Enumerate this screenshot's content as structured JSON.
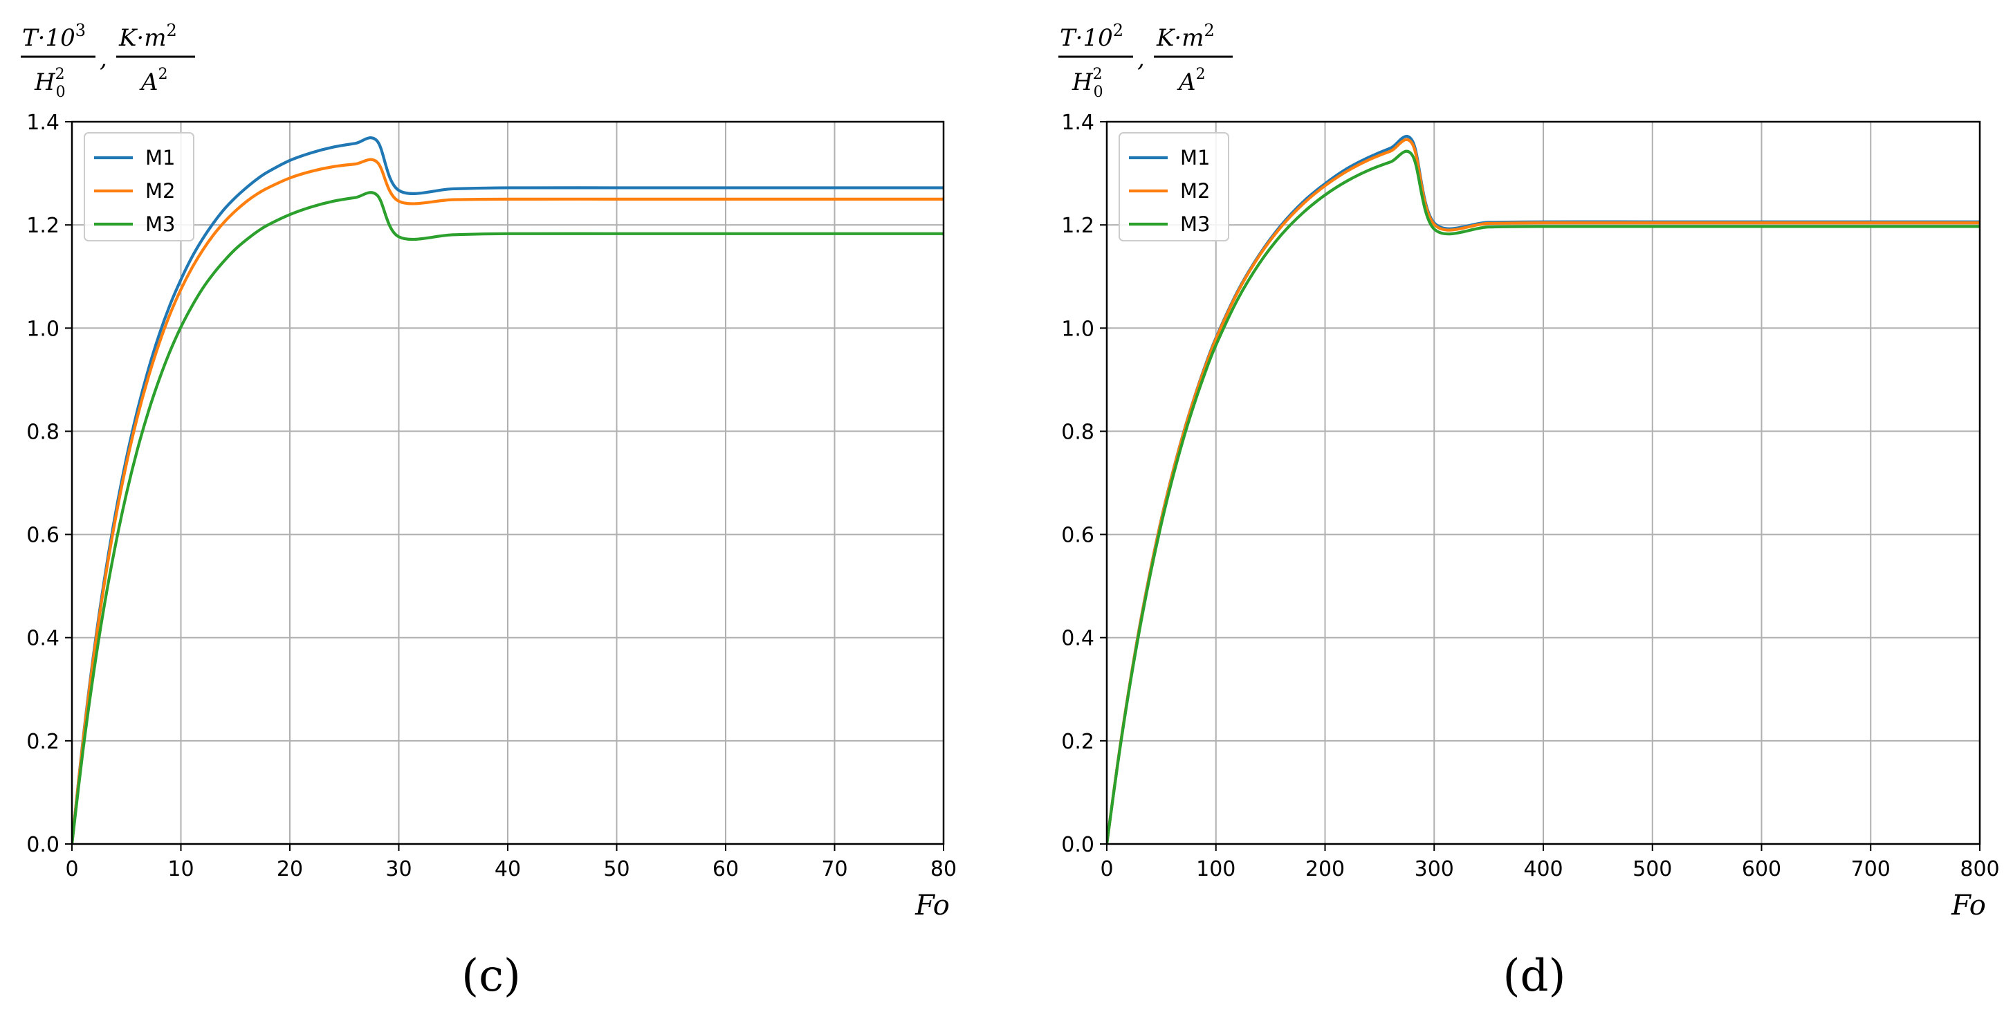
{
  "chart_data": [
    {
      "type": "line",
      "panel_label": "(c)",
      "ylabel": {
        "part1_num_base": "T·10",
        "part1_num_exp": "3",
        "part1_den_base": "H",
        "part1_den_sub": "0",
        "part1_den_sup": "2",
        "separator": ",",
        "part2_num_base": "K·m",
        "part2_num_exp": "2",
        "part2_den_base": "A",
        "part2_den_exp": "2"
      },
      "xlabel": "Fo",
      "xlim": [
        0,
        80
      ],
      "ylim": [
        0,
        1.4
      ],
      "xticks": [
        0,
        10,
        20,
        30,
        40,
        50,
        60,
        70,
        80
      ],
      "xtick_labels": [
        "0",
        "10",
        "20",
        "30",
        "40",
        "50",
        "60",
        "70",
        "80"
      ],
      "yticks": [
        0,
        0.2,
        0.4,
        0.6,
        0.8,
        1.0,
        1.2,
        1.4
      ],
      "ytick_labels": [
        "0.0",
        "0.2",
        "0.4",
        "0.6",
        "0.8",
        "1.0",
        "1.2",
        "1.4"
      ],
      "grid": true,
      "legend_position": "top-left",
      "series": [
        {
          "name": "M1",
          "color": "#1f77b4",
          "x": [
            0,
            1,
            2,
            3,
            4,
            5,
            6,
            7,
            8,
            9,
            10,
            11,
            12,
            13,
            14,
            15,
            16,
            17,
            18,
            20,
            22,
            24,
            26,
            28,
            30,
            35,
            40,
            50,
            60,
            70,
            80
          ],
          "y": [
            0,
            0.199,
            0.37,
            0.516,
            0.641,
            0.748,
            0.84,
            0.919,
            0.987,
            1.045,
            1.094,
            1.137,
            1.173,
            1.204,
            1.231,
            1.253,
            1.272,
            1.289,
            1.303,
            1.325,
            1.34,
            1.351,
            1.358,
            1.363,
            1.267,
            1.27,
            1.272,
            1.272,
            1.272,
            1.272,
            1.272
          ]
        },
        {
          "name": "M2",
          "color": "#ff7f0e",
          "x": [
            0,
            1,
            2,
            3,
            4,
            5,
            6,
            7,
            8,
            9,
            10,
            11,
            12,
            13,
            14,
            15,
            16,
            17,
            18,
            20,
            22,
            24,
            26,
            28,
            30,
            35,
            40,
            50,
            60,
            70,
            80
          ],
          "y": [
            0,
            0.196,
            0.364,
            0.508,
            0.631,
            0.737,
            0.827,
            0.904,
            0.97,
            1.027,
            1.075,
            1.116,
            1.151,
            1.181,
            1.206,
            1.227,
            1.245,
            1.26,
            1.272,
            1.291,
            1.304,
            1.313,
            1.318,
            1.322,
            1.246,
            1.249,
            1.25,
            1.25,
            1.25,
            1.25,
            1.25
          ]
        },
        {
          "name": "M3",
          "color": "#2ca02c",
          "x": [
            0,
            1,
            2,
            3,
            4,
            5,
            6,
            7,
            8,
            9,
            10,
            11,
            12,
            13,
            14,
            15,
            16,
            17,
            18,
            20,
            22,
            24,
            26,
            28,
            30,
            35,
            40,
            50,
            60,
            70,
            80
          ],
          "y": [
            0,
            0.179,
            0.333,
            0.466,
            0.58,
            0.679,
            0.764,
            0.837,
            0.9,
            0.955,
            1.002,
            1.042,
            1.077,
            1.106,
            1.131,
            1.153,
            1.171,
            1.187,
            1.2,
            1.22,
            1.235,
            1.246,
            1.253,
            1.258,
            1.177,
            1.181,
            1.183,
            1.183,
            1.183,
            1.183,
            1.183
          ]
        }
      ]
    },
    {
      "type": "line",
      "panel_label": "(d)",
      "ylabel": {
        "part1_num_base": "T·10",
        "part1_num_exp": "2",
        "part1_den_base": "H",
        "part1_den_sub": "0",
        "part1_den_sup": "2",
        "separator": ",",
        "part2_num_base": "K·m",
        "part2_num_exp": "2",
        "part2_den_base": "A",
        "part2_den_exp": "2"
      },
      "xlabel": "Fo",
      "xlim": [
        0,
        800
      ],
      "ylim": [
        0,
        1.4
      ],
      "xticks": [
        0,
        100,
        200,
        300,
        400,
        500,
        600,
        700,
        800
      ],
      "xtick_labels": [
        "0",
        "100",
        "200",
        "300",
        "400",
        "500",
        "600",
        "700",
        "800"
      ],
      "yticks": [
        0,
        0.2,
        0.4,
        0.6,
        0.8,
        1.0,
        1.2,
        1.4
      ],
      "ytick_labels": [
        "0.0",
        "0.2",
        "0.4",
        "0.6",
        "0.8",
        "1.0",
        "1.2",
        "1.4"
      ],
      "grid": true,
      "legend_position": "top-left",
      "series": [
        {
          "name": "M1",
          "color": "#1f77b4",
          "x": [
            0,
            10,
            20,
            30,
            40,
            50,
            60,
            70,
            80,
            90,
            100,
            120,
            140,
            160,
            180,
            200,
            220,
            240,
            260,
            280,
            300,
            350,
            400,
            500,
            600,
            700,
            800
          ],
          "y": [
            0,
            0.157,
            0.296,
            0.421,
            0.531,
            0.63,
            0.717,
            0.795,
            0.864,
            0.926,
            0.981,
            1.072,
            1.143,
            1.2,
            1.245,
            1.28,
            1.309,
            1.331,
            1.349,
            1.363,
            1.204,
            1.205,
            1.206,
            1.206,
            1.206,
            1.206,
            1.206
          ]
        },
        {
          "name": "M2",
          "color": "#ff7f0e",
          "x": [
            0,
            10,
            20,
            30,
            40,
            50,
            60,
            70,
            80,
            90,
            100,
            120,
            140,
            160,
            180,
            200,
            220,
            240,
            260,
            280,
            300,
            350,
            400,
            500,
            600,
            700,
            800
          ],
          "y": [
            0,
            0.157,
            0.296,
            0.42,
            0.53,
            0.629,
            0.716,
            0.794,
            0.863,
            0.924,
            0.979,
            1.07,
            1.141,
            1.197,
            1.241,
            1.276,
            1.304,
            1.326,
            1.343,
            1.357,
            1.201,
            1.203,
            1.204,
            1.204,
            1.204,
            1.204,
            1.204
          ]
        },
        {
          "name": "M3",
          "color": "#2ca02c",
          "x": [
            0,
            10,
            20,
            30,
            40,
            50,
            60,
            70,
            80,
            90,
            100,
            120,
            140,
            160,
            180,
            200,
            220,
            240,
            260,
            280,
            300,
            350,
            400,
            500,
            600,
            700,
            800
          ],
          "y": [
            0,
            0.155,
            0.293,
            0.415,
            0.524,
            0.621,
            0.707,
            0.784,
            0.852,
            0.913,
            0.967,
            1.056,
            1.126,
            1.181,
            1.224,
            1.258,
            1.285,
            1.306,
            1.322,
            1.335,
            1.192,
            1.196,
            1.197,
            1.197,
            1.197,
            1.197,
            1.197
          ]
        }
      ]
    }
  ]
}
